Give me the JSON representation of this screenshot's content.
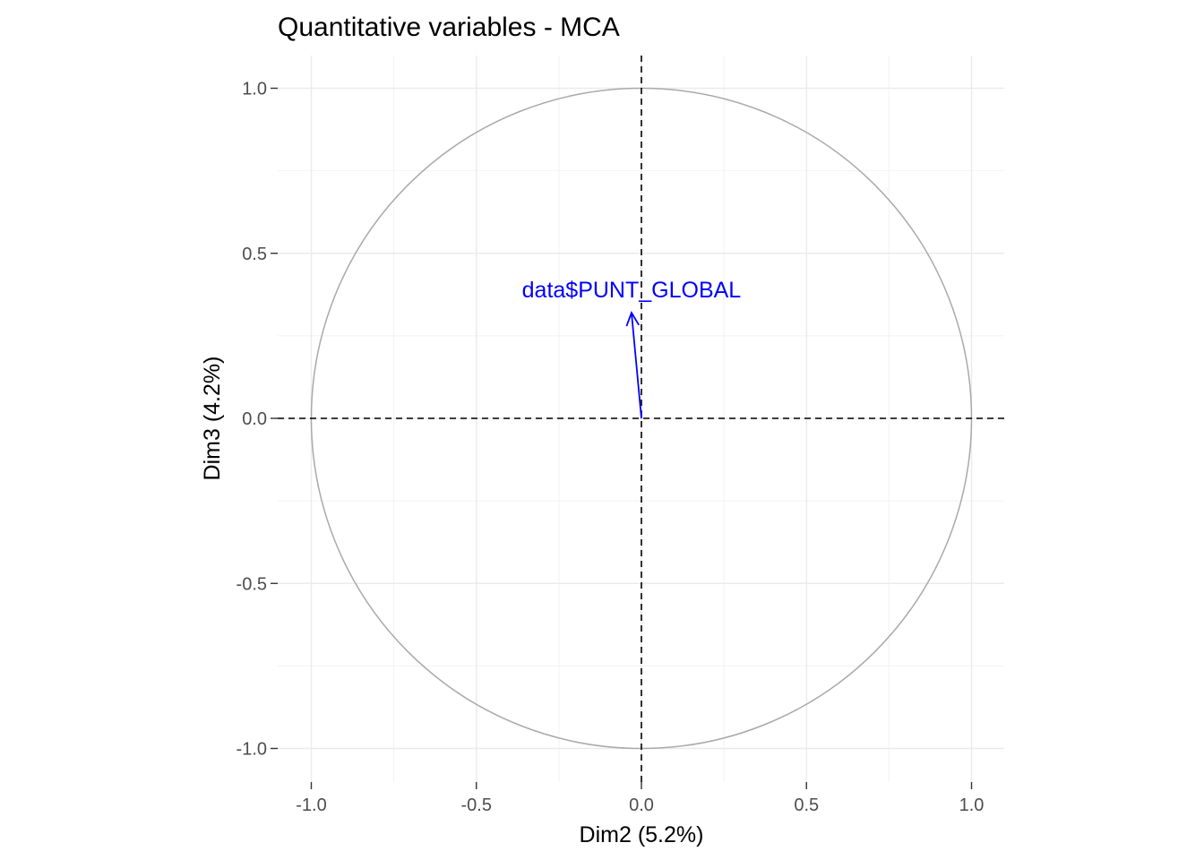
{
  "chart_data": {
    "type": "scatter",
    "title": "Quantitative variables - MCA",
    "xlabel": "Dim2 (5.2%)",
    "ylabel": "Dim3 (4.2%)",
    "xlim": [
      -1.1,
      1.1
    ],
    "ylim": [
      -1.1,
      1.1
    ],
    "x_ticks": [
      -1.0,
      -0.5,
      0.0,
      0.5,
      1.0
    ],
    "y_ticks": [
      -1.0,
      -0.5,
      0.0,
      0.5,
      1.0
    ],
    "x_tick_labels": [
      "-1.0",
      "-0.5",
      "0.0",
      "0.5",
      "1.0"
    ],
    "y_tick_labels": [
      "-1.0",
      "-0.5",
      "0.0",
      "0.5",
      "1.0"
    ],
    "grid": true,
    "correlation_circle": {
      "radius": 1.0,
      "color": "#a9a9a9"
    },
    "reference_lines": {
      "x": 0,
      "y": 0,
      "style": "dashed"
    },
    "variables": [
      {
        "label": "data$PUNT_GLOBAL",
        "x": -0.03,
        "y": 0.32,
        "color": "#0000ff"
      }
    ]
  }
}
